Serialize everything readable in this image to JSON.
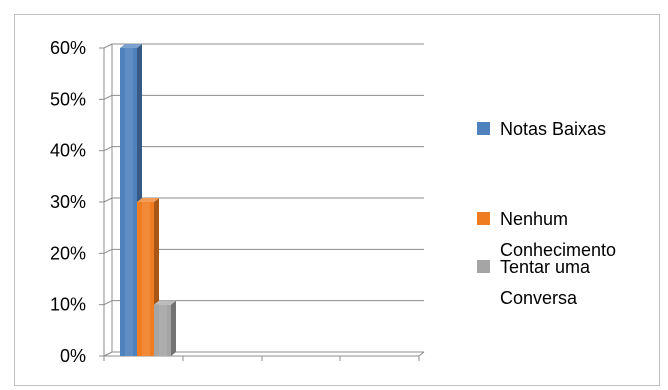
{
  "chart_data": {
    "type": "bar",
    "style": "3d-clustered",
    "title": "",
    "xlabel": "",
    "ylabel": "",
    "ylim": [
      0,
      60
    ],
    "yticks": [
      "0%",
      "10%",
      "20%",
      "30%",
      "40%",
      "50%",
      "60%"
    ],
    "grid": true,
    "legend_position": "right",
    "categories": [
      ""
    ],
    "series": [
      {
        "name": "Notas Baixas",
        "values": [
          60
        ],
        "color": "#4f81bd"
      },
      {
        "name": "Nenhum Conhecimento",
        "values": [
          30
        ],
        "color": "#f07c21"
      },
      {
        "name": "Tentar uma Conversa",
        "values": [
          10
        ],
        "color": "#a5a5a5"
      }
    ],
    "legend_lines": [
      [
        "Notas Baixas"
      ],
      [
        "Nenhum",
        "Conhecimento"
      ],
      [
        "Tentar uma",
        "Conversa"
      ]
    ]
  }
}
